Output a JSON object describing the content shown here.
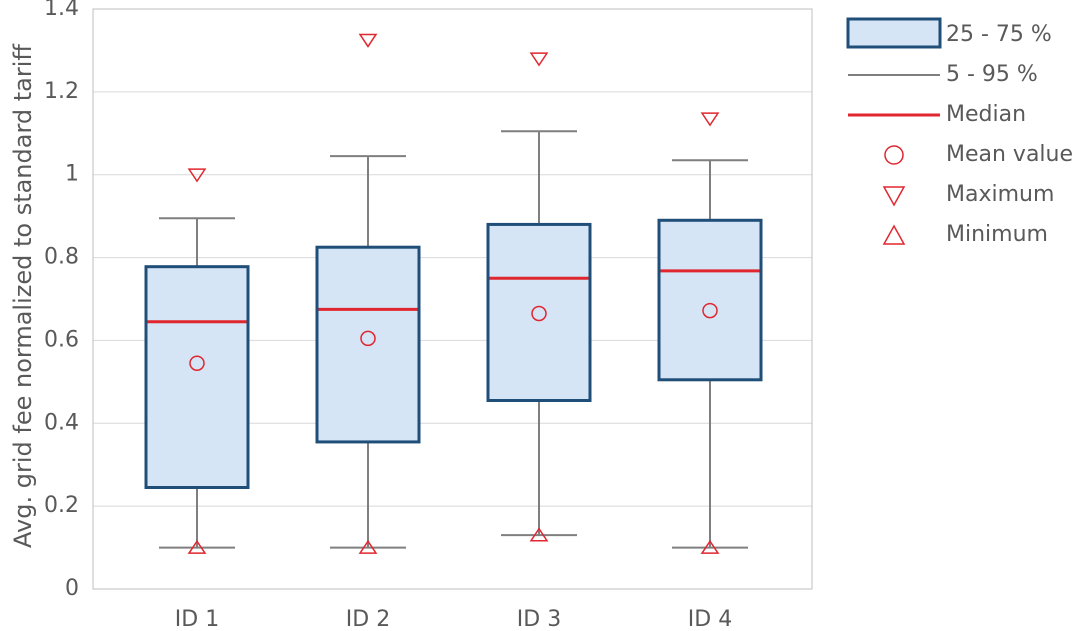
{
  "chart_data": {
    "type": "box",
    "y_label": "Avg. grid fee normalized to standard tariff",
    "categories": [
      "ID 1",
      "ID 2",
      "ID 3",
      "ID 4"
    ],
    "whisker_low": [
      0.1,
      0.1,
      0.13,
      0.1
    ],
    "q1": [
      0.245,
      0.355,
      0.455,
      0.505
    ],
    "median": [
      0.645,
      0.675,
      0.75,
      0.768
    ],
    "q3": [
      0.778,
      0.825,
      0.88,
      0.89
    ],
    "whisker_high": [
      0.895,
      1.045,
      1.105,
      1.035
    ],
    "mean": [
      0.545,
      0.605,
      0.665,
      0.672
    ],
    "max": [
      1.0,
      1.325,
      1.28,
      1.135
    ],
    "min": [
      0.1,
      0.1,
      0.13,
      0.1
    ],
    "legend": {
      "box": "25 - 75 %",
      "whisker": "5 - 95 %",
      "median": "Median",
      "mean": "Mean value",
      "max": "Maximum",
      "min": "Minimum"
    },
    "colors": {
      "box_fill": "#d6e5f5",
      "box_edge": "#1f4e79",
      "whisker": "#7f7f7f",
      "median": "#e0262f",
      "markers": "#e0262f"
    },
    "ylim": [
      0,
      1.4
    ],
    "yticks": [
      0,
      0.2,
      0.4,
      0.6,
      0.8,
      1,
      1.2,
      1.4
    ],
    "grid": true
  }
}
